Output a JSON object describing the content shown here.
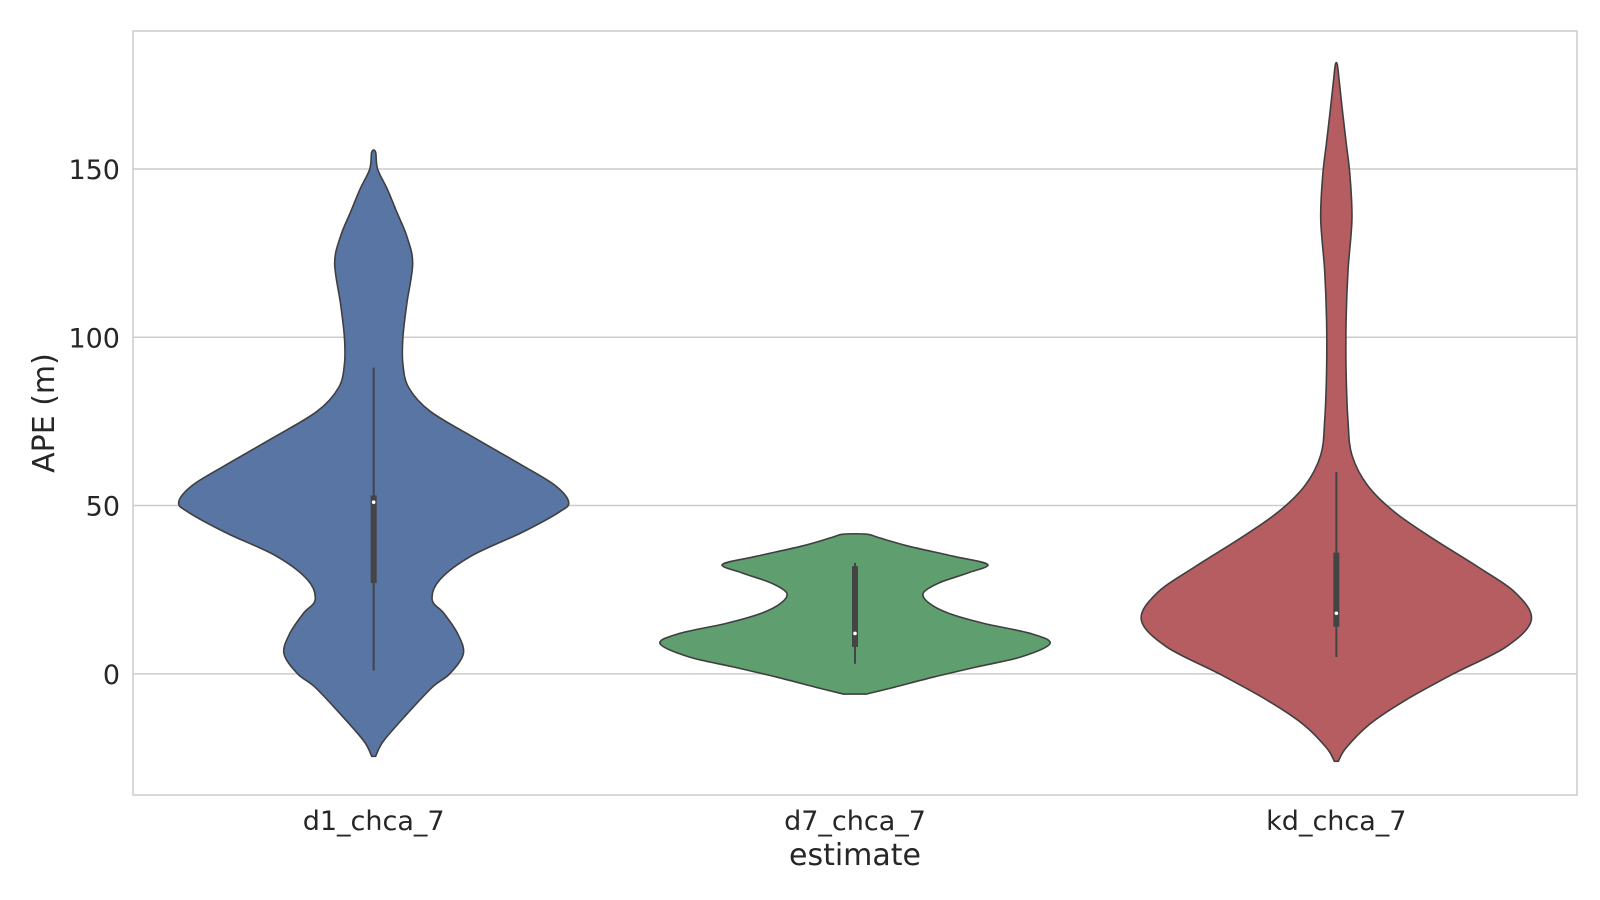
{
  "chart_data": {
    "type": "violin",
    "xlabel": "estimate",
    "ylabel": "APE (m)",
    "ylim": [
      -36,
      191
    ],
    "yticks": [
      0,
      50,
      100,
      150
    ],
    "grid": "horizontal",
    "categories": [
      "d1_chca_7",
      "d7_chca_7",
      "kd_chca_7"
    ],
    "colors": [
      "#5875a4",
      "#5f9e6e",
      "#b55d60"
    ],
    "series": [
      {
        "category": "d1_chca_7",
        "color": "#5875a4",
        "density_profile": [
          [
            -24.5,
            0.01
          ],
          [
            -20,
            0.05
          ],
          [
            -12,
            0.17
          ],
          [
            -4,
            0.3
          ],
          [
            0,
            0.39
          ],
          [
            6,
            0.46
          ],
          [
            12,
            0.43
          ],
          [
            18,
            0.36
          ],
          [
            22,
            0.3
          ],
          [
            28,
            0.34
          ],
          [
            35,
            0.5
          ],
          [
            42,
            0.76
          ],
          [
            48,
            0.95
          ],
          [
            51,
            1.0
          ],
          [
            56,
            0.93
          ],
          [
            62,
            0.76
          ],
          [
            70,
            0.52
          ],
          [
            78,
            0.29
          ],
          [
            85,
            0.18
          ],
          [
            92,
            0.15
          ],
          [
            100,
            0.15
          ],
          [
            110,
            0.17
          ],
          [
            122,
            0.2
          ],
          [
            130,
            0.17
          ],
          [
            137,
            0.12
          ],
          [
            144,
            0.07
          ],
          [
            150,
            0.02
          ],
          [
            155,
            0.01
          ]
        ],
        "whisker": [
          1,
          91
        ],
        "quartiles": [
          27,
          53
        ],
        "median": 51
      },
      {
        "category": "d7_chca_7",
        "color": "#5f9e6e",
        "density_profile": [
          [
            -6,
            0.06
          ],
          [
            -4,
            0.2
          ],
          [
            -1,
            0.4
          ],
          [
            2,
            0.62
          ],
          [
            5,
            0.85
          ],
          [
            9,
            1.0
          ],
          [
            12,
            0.9
          ],
          [
            15,
            0.66
          ],
          [
            18,
            0.48
          ],
          [
            21,
            0.38
          ],
          [
            24,
            0.35
          ],
          [
            27,
            0.43
          ],
          [
            30,
            0.58
          ],
          [
            32.5,
            0.68
          ],
          [
            35,
            0.5
          ],
          [
            38,
            0.27
          ],
          [
            40.5,
            0.12
          ],
          [
            41.5,
            0.06
          ]
        ],
        "whisker": [
          3,
          33
        ],
        "quartiles": [
          8,
          32
        ],
        "median": 12
      },
      {
        "category": "kd_chca_7",
        "color": "#b55d60",
        "density_profile": [
          [
            -26,
            0.01
          ],
          [
            -22,
            0.05
          ],
          [
            -15,
            0.17
          ],
          [
            -8,
            0.35
          ],
          [
            0,
            0.6
          ],
          [
            8,
            0.87
          ],
          [
            16,
            1.0
          ],
          [
            24,
            0.92
          ],
          [
            32,
            0.72
          ],
          [
            40,
            0.5
          ],
          [
            48,
            0.3
          ],
          [
            56,
            0.16
          ],
          [
            65,
            0.08
          ],
          [
            75,
            0.06
          ],
          [
            90,
            0.05
          ],
          [
            105,
            0.05
          ],
          [
            120,
            0.06
          ],
          [
            135,
            0.08
          ],
          [
            148,
            0.07
          ],
          [
            158,
            0.05
          ],
          [
            168,
            0.03
          ],
          [
            176,
            0.015
          ],
          [
            181,
            0.005
          ]
        ],
        "whisker": [
          5,
          60
        ],
        "quartiles": [
          14,
          36
        ],
        "median": 18
      }
    ]
  }
}
